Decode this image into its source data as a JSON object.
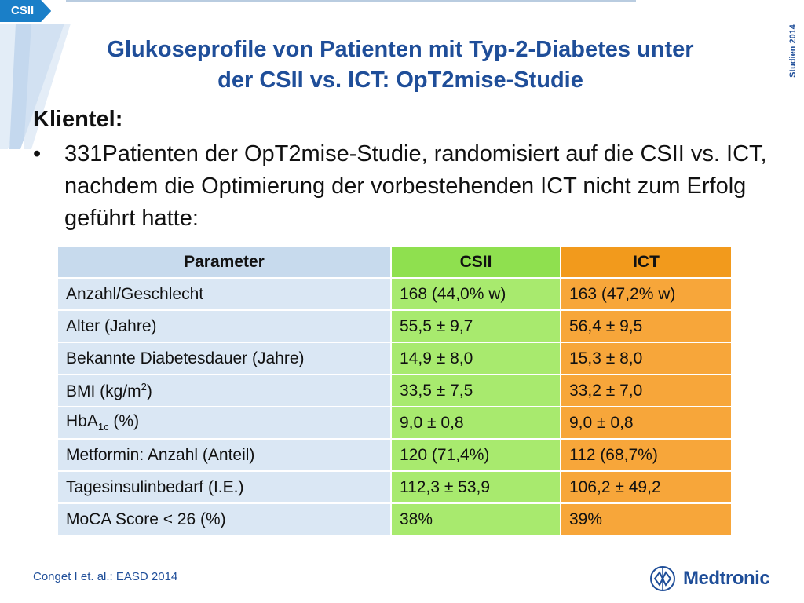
{
  "tag": "CSII",
  "side_label": "Studien 2014",
  "title_line1": "Glukoseprofile von Patienten mit Typ-2-Diabetes unter",
  "title_line2": "der CSII vs. ICT: OpT2mise-Studie",
  "section_heading": "Klientel:",
  "bullet": "•",
  "bullet_text": "331Patienten der OpT2mise-Studie, randomisiert auf die CSII vs. ICT, nachdem die Optimierung der vorbestehenden ICT nicht zum Erfolg geführt hatte:",
  "table": {
    "headers": [
      "Parameter",
      "CSII",
      "ICT"
    ],
    "rows": [
      {
        "param": "Anzahl/Geschlecht",
        "csii": "168 (44,0% w)",
        "ict": "163 (47,2% w)"
      },
      {
        "param": "Alter (Jahre)",
        "csii": "55,5 ± 9,7",
        "ict": "56,4 ± 9,5"
      },
      {
        "param": "Bekannte Diabetesdauer (Jahre)",
        "csii": "14,9 ± 8,0",
        "ict": "15,3 ± 8,0"
      },
      {
        "param_main": "BMI (kg/m",
        "param_sup": "2",
        "param_tail": ")",
        "csii": "33,5 ± 7,5",
        "ict": "33,2 ± 7,0"
      },
      {
        "param_main": "HbA",
        "param_sub": "1c",
        "param_tail": " (%)",
        "csii": "9,0 ± 0,8",
        "ict": "9,0 ± 0,8"
      },
      {
        "param": "Metformin: Anzahl (Anteil)",
        "csii": "120 (71,4%)",
        "ict": "112 (68,7%)"
      },
      {
        "param": "Tagesinsulinbedarf (I.E.)",
        "csii": "112,3 ± 53,9",
        "ict": "106,2 ± 49,2"
      },
      {
        "param": "MoCA Score < 26 (%)",
        "csii": "38%",
        "ict": "39%"
      }
    ]
  },
  "citation": "Conget I et. al.: EASD 2014",
  "logo_text": "Medtronic",
  "colors": {
    "accent_blue": "#1f4e99",
    "csii_green": "#a8ea6e",
    "ict_orange": "#f7a63a",
    "param_blue": "#dae7f4"
  }
}
